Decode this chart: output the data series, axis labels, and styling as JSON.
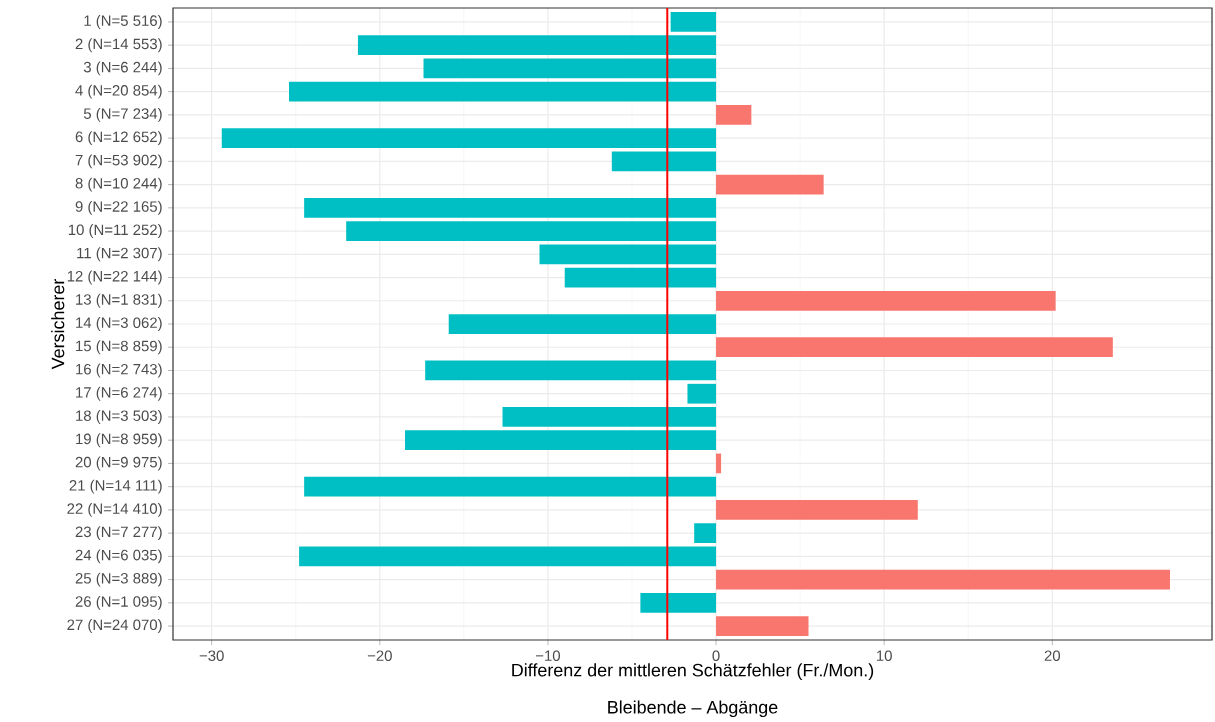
{
  "chart_data": {
    "type": "bar",
    "orientation": "horizontal",
    "xlabel": "Differenz der mittleren Schätzfehler (Fr./Mon.)",
    "ylabel": "Versicherer",
    "annotations": [
      "Bleibende – Abgänge"
    ],
    "categories": [
      "1 (N=5 516)",
      "2 (N=14 553)",
      "3 (N=6 244)",
      "4 (N=20 854)",
      "5 (N=7 234)",
      "6 (N=12 652)",
      "7 (N=53 902)",
      "8 (N=10 244)",
      "9 (N=22 165)",
      "10 (N=11 252)",
      "11 (N=2 307)",
      "12 (N=22 144)",
      "13 (N=1 831)",
      "14 (N=3 062)",
      "15 (N=8 859)",
      "16 (N=2 743)",
      "17 (N=6 274)",
      "18 (N=3 503)",
      "19 (N=8 959)",
      "20 (N=9 975)",
      "21 (N=14 111)",
      "22 (N=14 410)",
      "23 (N=7 277)",
      "24 (N=6 035)",
      "25 (N=3 889)",
      "26 (N=1 095)",
      "27 (N=24 070)"
    ],
    "values": [
      -2.7,
      -21.3,
      -17.4,
      -25.4,
      2.1,
      -29.4,
      -6.2,
      6.4,
      -24.5,
      -22.0,
      -10.5,
      -9.0,
      20.2,
      -15.9,
      23.6,
      -17.3,
      -1.7,
      -12.7,
      -18.5,
      0.3,
      -24.5,
      12.0,
      -1.3,
      -24.8,
      27.0,
      -4.5,
      5.5
    ],
    "colors": [
      "#00bfc4",
      "#00bfc4",
      "#00bfc4",
      "#00bfc4",
      "#f8766d",
      "#00bfc4",
      "#00bfc4",
      "#f8766d",
      "#00bfc4",
      "#00bfc4",
      "#00bfc4",
      "#00bfc4",
      "#f8766d",
      "#00bfc4",
      "#f8766d",
      "#00bfc4",
      "#00bfc4",
      "#00bfc4",
      "#00bfc4",
      "#f8766d",
      "#00bfc4",
      "#f8766d",
      "#00bfc4",
      "#00bfc4",
      "#f8766d",
      "#00bfc4",
      "#f8766d"
    ],
    "xlim": [
      -32.3,
      29.5
    ],
    "xticks": [
      {
        "value": -30,
        "label": "−30"
      },
      {
        "value": -20,
        "label": "−20"
      },
      {
        "value": -10,
        "label": "−10"
      },
      0,
      10,
      20
    ],
    "ref_lines": [
      {
        "axis": "x",
        "value": -2.9,
        "color": "#ff0000"
      }
    ],
    "grid": true
  }
}
